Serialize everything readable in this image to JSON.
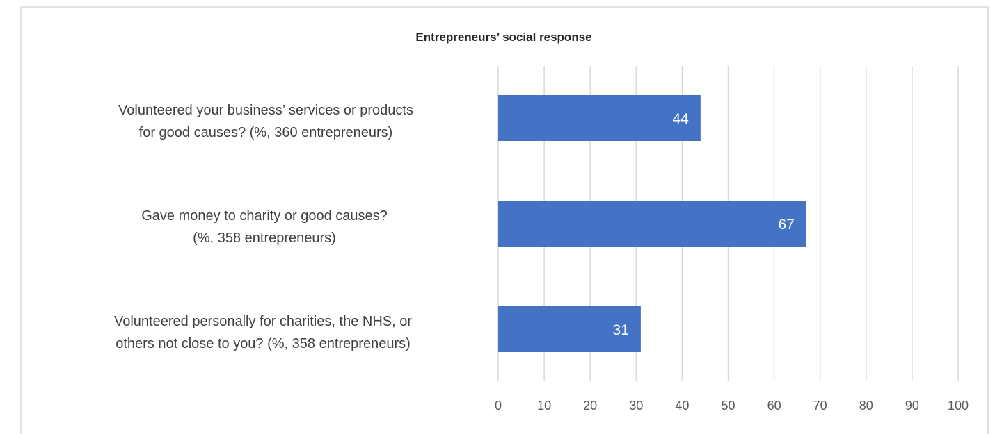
{
  "chart_data": {
    "type": "bar",
    "orientation": "horizontal",
    "title": "Entrepreneurs’ social response",
    "categories": [
      [
        "Volunteered your business’ services or products",
        "for good causes? (%, 360 entrepreneurs)"
      ],
      [
        "Gave money to charity or good causes?",
        "(%, 358 entrepreneurs)"
      ],
      [
        "Volunteered personally for charities, the NHS, or",
        "others not close to you? (%, 358 entrepreneurs)"
      ]
    ],
    "values": [
      44,
      67,
      31
    ],
    "data_labels": [
      "44",
      "67",
      "31"
    ],
    "xlim": [
      0,
      100
    ],
    "xticks": [
      0,
      10,
      20,
      30,
      40,
      50,
      60,
      70,
      80,
      90,
      100
    ],
    "xlabel": "",
    "ylabel": "",
    "grid": true,
    "legend": "none",
    "colors": {
      "bar": "#4472c4",
      "grid": "#d9d9d9",
      "border": "#d9d9d9",
      "data_label": "#ffffff"
    }
  }
}
